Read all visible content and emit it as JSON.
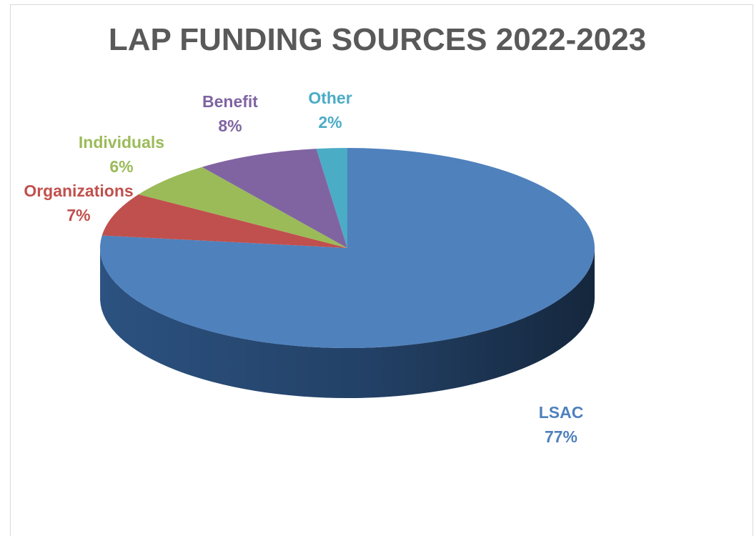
{
  "chart_data": {
    "type": "pie",
    "title": "LAP FUNDING SOURCES 2022-2023",
    "slices": [
      {
        "label": "LSAC",
        "value": 77,
        "value_text": "77%",
        "color": "#4f81bd",
        "side_color": "#2e5687"
      },
      {
        "label": "Organizations",
        "value": 7,
        "value_text": "7%",
        "color": "#c0504d",
        "side_color": "#8c3533"
      },
      {
        "label": "Individuals",
        "value": 6,
        "value_text": "6%",
        "color": "#9bbb59",
        "side_color": "#6d8a3a"
      },
      {
        "label": "Benefit",
        "value": 8,
        "value_text": "8%",
        "color": "#8064a2",
        "side_color": "#5b4576"
      },
      {
        "label": "Other",
        "value": 2,
        "value_text": "2%",
        "color": "#4bacc6",
        "side_color": "#2f7e93"
      }
    ],
    "legend": "none",
    "style": "3d-pie"
  }
}
